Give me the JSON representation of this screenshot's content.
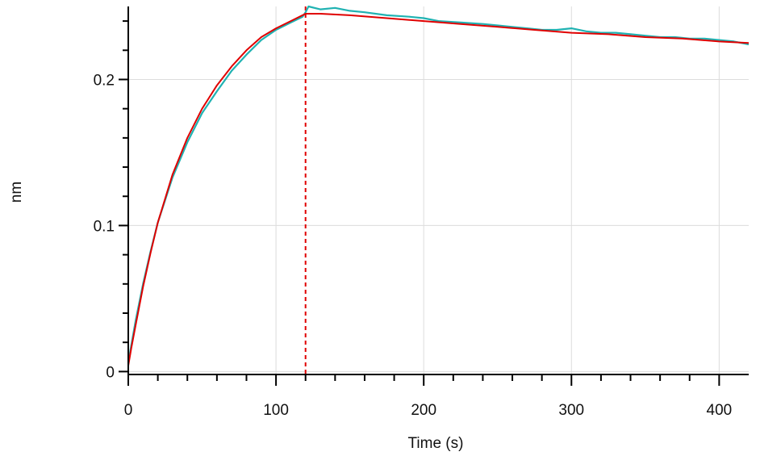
{
  "chart_data": {
    "type": "line",
    "title": "",
    "xlabel": "Time (s)",
    "ylabel": "nm",
    "xlim": [
      0,
      420
    ],
    "ylim": [
      -0.002,
      0.25
    ],
    "x_ticks": [
      0,
      100,
      200,
      300,
      400
    ],
    "x_tick_labels": [
      "0",
      "100",
      "200",
      "300",
      "400"
    ],
    "y_ticks": [
      0,
      0.1,
      0.2
    ],
    "y_tick_labels": [
      "0",
      "0.1",
      "0.2"
    ],
    "grid": true,
    "legend": "none",
    "markers": [
      {
        "name": "association-start",
        "x": 0,
        "color": "#e00000",
        "style": "dashed"
      },
      {
        "name": "dissociation-start",
        "x": 120,
        "color": "#e00000",
        "style": "dashed"
      }
    ],
    "series": [
      {
        "id": "measured",
        "color": "#20b2b2",
        "x": [
          0,
          2,
          5,
          10,
          15,
          20,
          30,
          40,
          50,
          60,
          70,
          80,
          90,
          100,
          110,
          118,
          120,
          122,
          130,
          140,
          150,
          160,
          175,
          190,
          200,
          210,
          225,
          240,
          250,
          260,
          270,
          280,
          290,
          300,
          310,
          320,
          330,
          340,
          350,
          360,
          370,
          380,
          390,
          400,
          410,
          420
        ],
        "y": [
          0.006,
          0.018,
          0.035,
          0.06,
          0.082,
          0.102,
          0.133,
          0.157,
          0.177,
          0.192,
          0.206,
          0.217,
          0.227,
          0.234,
          0.239,
          0.243,
          0.246,
          0.25,
          0.248,
          0.249,
          0.247,
          0.246,
          0.244,
          0.243,
          0.242,
          0.24,
          0.239,
          0.238,
          0.237,
          0.236,
          0.235,
          0.234,
          0.234,
          0.235,
          0.233,
          0.232,
          0.232,
          0.231,
          0.23,
          0.229,
          0.229,
          0.228,
          0.228,
          0.227,
          0.226,
          0.224
        ]
      },
      {
        "id": "fit",
        "color": "#e00000",
        "x": [
          0,
          2,
          5,
          10,
          15,
          20,
          30,
          40,
          50,
          60,
          70,
          80,
          90,
          100,
          110,
          120,
          130,
          150,
          175,
          200,
          225,
          250,
          275,
          300,
          325,
          350,
          375,
          400,
          420
        ],
        "y": [
          0.004,
          0.016,
          0.032,
          0.058,
          0.081,
          0.102,
          0.135,
          0.16,
          0.18,
          0.196,
          0.209,
          0.22,
          0.229,
          0.235,
          0.24,
          0.245,
          0.245,
          0.244,
          0.242,
          0.24,
          0.238,
          0.236,
          0.234,
          0.232,
          0.231,
          0.229,
          0.228,
          0.226,
          0.225
        ]
      }
    ]
  }
}
